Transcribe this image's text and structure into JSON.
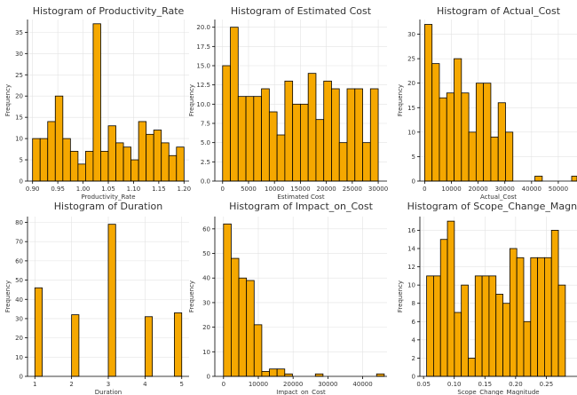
{
  "chart_data": [
    {
      "type": "bar",
      "title": "Histogram of Productivity_Rate",
      "xlabel": "Productivity_Rate",
      "ylabel": "Frequency",
      "xlim": [
        0.89,
        1.21
      ],
      "ylim": [
        0,
        38
      ],
      "xticks": [
        0.9,
        0.95,
        1.0,
        1.05,
        1.1,
        1.15,
        1.2
      ],
      "xtick_labels": [
        "0.90",
        "0.95",
        "1.00",
        "1.05",
        "1.10",
        "1.15",
        "1.20"
      ],
      "yticks": [
        0,
        5,
        10,
        15,
        20,
        25,
        30,
        35
      ],
      "ytick_labels": [
        "0",
        "5",
        "10",
        "15",
        "20",
        "25",
        "30",
        "35"
      ],
      "bin_start": 0.9,
      "bin_width": 0.015,
      "values": [
        10,
        10,
        14,
        20,
        10,
        7,
        4,
        7,
        37,
        7,
        13,
        9,
        8,
        5,
        14,
        11,
        12,
        9,
        6,
        8
      ],
      "grid": true
    },
    {
      "type": "bar",
      "title": "Histogram of Estimated Cost",
      "xlabel": "Estimated Cost",
      "ylabel": "Frequency",
      "xlim": [
        -1500,
        31700
      ],
      "ylim": [
        0,
        21
      ],
      "xticks": [
        0,
        5000,
        10000,
        15000,
        20000,
        25000,
        30000
      ],
      "xtick_labels": [
        "0",
        "5000",
        "10000",
        "15000",
        "20000",
        "25000",
        "30000"
      ],
      "yticks": [
        0,
        2.5,
        5,
        7.5,
        10,
        12.5,
        15,
        17.5,
        20
      ],
      "ytick_labels": [
        "0.0",
        "2.5",
        "5.0",
        "7.5",
        "10.0",
        "12.5",
        "15.0",
        "17.5",
        "20.0"
      ],
      "bin_start": 0,
      "bin_width": 1500,
      "values": [
        15,
        20,
        11,
        11,
        11,
        12,
        9,
        6,
        13,
        10,
        10,
        14,
        8,
        13,
        12,
        5,
        12,
        12,
        5,
        12
      ],
      "grid": true
    },
    {
      "type": "bar",
      "title": "Histogram of Actual_Cost",
      "xlabel": "Actual_Cost",
      "ylabel": "Frequency",
      "xlim": [
        -1800,
        57000
      ],
      "ylim": [
        0,
        33
      ],
      "xticks": [
        0,
        10000,
        20000,
        30000,
        40000,
        50000
      ],
      "xtick_labels": [
        "0",
        "10000",
        "20000",
        "30000",
        "40000",
        "50000"
      ],
      "yticks": [
        0,
        5,
        10,
        15,
        20,
        25,
        30
      ],
      "ytick_labels": [
        "0",
        "5",
        "10",
        "15",
        "20",
        "25",
        "30"
      ],
      "bin_start": 0,
      "bin_width": 2750,
      "values": [
        32,
        24,
        17,
        18,
        25,
        18,
        10,
        20,
        20,
        9,
        16,
        10,
        0,
        0,
        0,
        1,
        0,
        0,
        0,
        0,
        1
      ],
      "grid": true
    },
    {
      "type": "bar",
      "title": "Histogram of Duration",
      "xlabel": "Duration",
      "ylabel": "Frequency",
      "xlim": [
        0.8,
        5.2
      ],
      "ylim": [
        0,
        83
      ],
      "xticks": [
        1,
        2,
        3,
        4,
        5
      ],
      "xtick_labels": [
        "1",
        "2",
        "3",
        "4",
        "5"
      ],
      "yticks": [
        0,
        10,
        20,
        30,
        40,
        50,
        60,
        70,
        80
      ],
      "ytick_labels": [
        "0",
        "10",
        "20",
        "30",
        "40",
        "50",
        "60",
        "70",
        "80"
      ],
      "bin_start": 1,
      "bin_width": 0.2,
      "values": [
        46,
        0,
        0,
        0,
        0,
        32,
        0,
        0,
        0,
        0,
        79,
        0,
        0,
        0,
        0,
        31,
        0,
        0,
        0,
        33
      ],
      "grid": true
    },
    {
      "type": "bar",
      "title": "Histogram of Impact_on_Cost",
      "xlabel": "Impact_on_Cost",
      "ylabel": "Frequency",
      "xlim": [
        -2500,
        47000
      ],
      "ylim": [
        0,
        65
      ],
      "xticks": [
        0,
        10000,
        20000,
        30000,
        40000
      ],
      "xtick_labels": [
        "0",
        "10000",
        "20000",
        "30000",
        "40000"
      ],
      "yticks": [
        0,
        10,
        20,
        30,
        40,
        50,
        60
      ],
      "ytick_labels": [
        "0",
        "10",
        "20",
        "30",
        "40",
        "50",
        "60"
      ],
      "bin_start": 0,
      "bin_width": 2200,
      "values": [
        62,
        48,
        40,
        39,
        21,
        2,
        3,
        3,
        1,
        0,
        0,
        0,
        1,
        0,
        0,
        0,
        0,
        0,
        0,
        0,
        1
      ],
      "grid": true
    },
    {
      "type": "bar",
      "title": "Histogram of Scope_Change_Magnitu",
      "xlabel": "Scope_Change_Magnitude",
      "ylabel": "Frequency",
      "xlim": [
        0.044,
        0.3
      ],
      "ylim": [
        0,
        17.5
      ],
      "xticks": [
        0.05,
        0.1,
        0.15,
        0.2,
        0.25
      ],
      "xtick_labels": [
        "0.05",
        "0.10",
        "0.15",
        "0.20",
        "0.25"
      ],
      "yticks": [
        0,
        2,
        4,
        6,
        8,
        10,
        12,
        14,
        16
      ],
      "ytick_labels": [
        "0",
        "2",
        "4",
        "6",
        "8",
        "10",
        "12",
        "14",
        "16"
      ],
      "bin_start": 0.055,
      "bin_width": 0.0113,
      "values": [
        11,
        11,
        15,
        17,
        7,
        10,
        2,
        11,
        11,
        11,
        9,
        8,
        14,
        13,
        6,
        13,
        13,
        13,
        16,
        10
      ],
      "grid": true
    }
  ]
}
